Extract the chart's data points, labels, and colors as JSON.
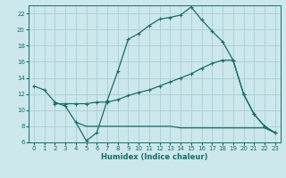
{
  "xlabel": "Humidex (Indice chaleur)",
  "background_color": "#cce8ec",
  "grid_color": "#aacdd4",
  "line_color": "#1a6b6b",
  "xlim": [
    -0.5,
    23.5
  ],
  "ylim": [
    6,
    23
  ],
  "yticks": [
    6,
    8,
    10,
    12,
    14,
    16,
    18,
    20,
    22
  ],
  "xticks": [
    0,
    1,
    2,
    3,
    4,
    5,
    6,
    7,
    8,
    9,
    10,
    11,
    12,
    13,
    14,
    15,
    16,
    17,
    18,
    19,
    20,
    21,
    22,
    23
  ],
  "line1_x": [
    0,
    1,
    2,
    3,
    4,
    5,
    6,
    7,
    8,
    9,
    10,
    11,
    12,
    13,
    14,
    15,
    16,
    17,
    18,
    19,
    20,
    21,
    22,
    23
  ],
  "line1_y": [
    13,
    12.5,
    11,
    10.5,
    8.5,
    6.2,
    7.2,
    11.2,
    14.8,
    18.8,
    19.5,
    20.5,
    21.3,
    21.5,
    21.8,
    22.8,
    21.2,
    19.8,
    18.5,
    16.2,
    12.0,
    9.5,
    8.0,
    7.2
  ],
  "line2_x": [
    2,
    3,
    4,
    5,
    6,
    7,
    8,
    9,
    10,
    11,
    12,
    13,
    14,
    15,
    16,
    17,
    18,
    19,
    20,
    21,
    22,
    23
  ],
  "line2_y": [
    10.8,
    10.8,
    10.8,
    10.8,
    11.0,
    11.0,
    11.3,
    11.8,
    12.2,
    12.5,
    13.0,
    13.5,
    14.0,
    14.5,
    15.2,
    15.8,
    16.2,
    16.2,
    12.0,
    9.5,
    8.0,
    7.2
  ],
  "line3_x": [
    4,
    5,
    6,
    7,
    8,
    9,
    10,
    11,
    12,
    13,
    14,
    15,
    16,
    17,
    18,
    19,
    20,
    21,
    22,
    23
  ],
  "line3_y": [
    8.5,
    8.0,
    8.0,
    8.0,
    8.0,
    8.0,
    8.0,
    8.0,
    8.0,
    8.0,
    7.8,
    7.8,
    7.8,
    7.8,
    7.8,
    7.8,
    7.8,
    7.8,
    7.8,
    7.2
  ]
}
